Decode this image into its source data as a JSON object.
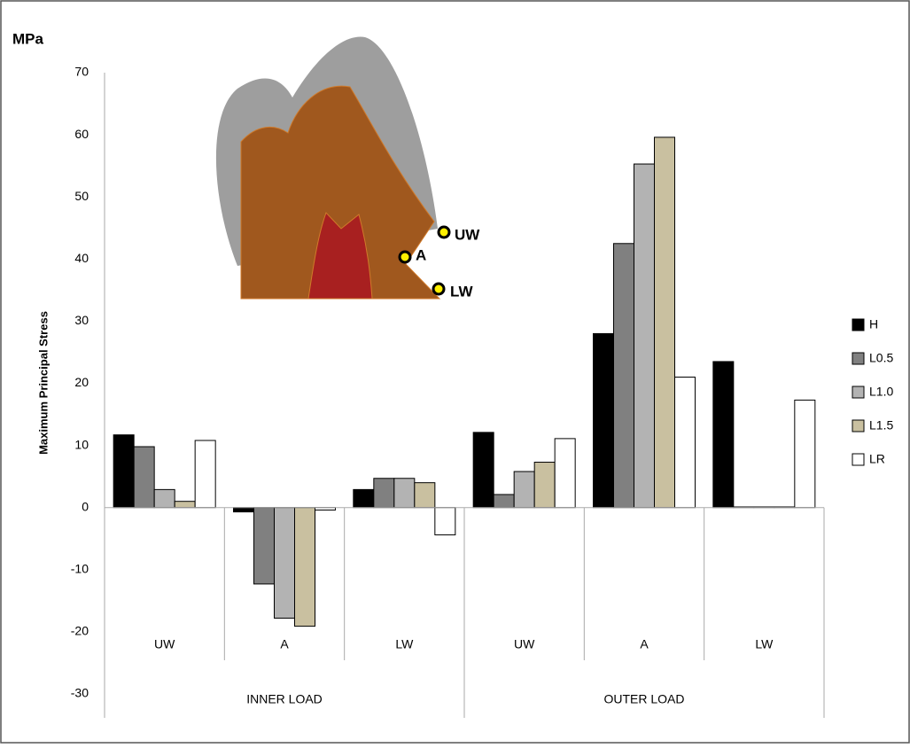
{
  "chart_data": {
    "type": "bar",
    "y_unit_label": "MPa",
    "ylabel": "Maximum Principal Stress",
    "categories": [
      "UW",
      "A",
      "LW",
      "UW",
      "A",
      "LW"
    ],
    "group_labels": [
      "INNER LOAD",
      "OUTER LOAD"
    ],
    "annotations": [
      "UW",
      "A",
      "LW"
    ],
    "series": [
      {
        "name": "H",
        "color": "#000000",
        "values": [
          11.7,
          -0.7,
          2.9,
          12.1,
          28.0,
          23.5
        ]
      },
      {
        "name": "L0.5",
        "color": "#808080",
        "values": [
          9.8,
          -12.3,
          4.7,
          2.1,
          42.5,
          0.1
        ]
      },
      {
        "name": "L1.0",
        "color": "#b3b3b3",
        "values": [
          2.9,
          -17.8,
          4.7,
          5.8,
          55.3,
          0.1
        ]
      },
      {
        "name": "L1.5",
        "color": "#c9c0a0",
        "values": [
          1.0,
          -19.1,
          4.0,
          7.3,
          59.6,
          0.1
        ]
      },
      {
        "name": "LR",
        "color": "#ffffff",
        "values": [
          10.8,
          -0.4,
          -4.4,
          11.1,
          21.0,
          17.3
        ]
      }
    ],
    "ylim": [
      -30,
      70
    ],
    "yticks": [
      -30,
      -20,
      -10,
      0,
      10,
      20,
      30,
      40,
      50,
      60,
      70
    ]
  }
}
